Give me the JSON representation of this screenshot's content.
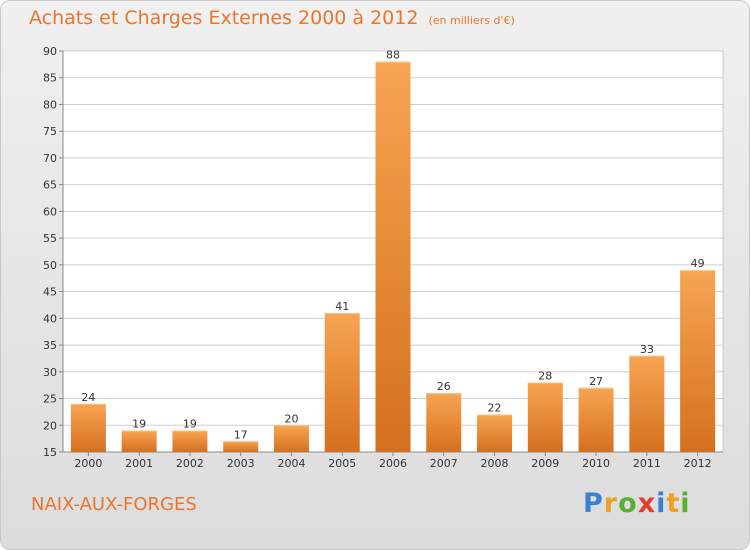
{
  "header": {
    "title": "Achats et Charges Externes 2000 à 2012",
    "subtitle": "(en milliers d'€)"
  },
  "footer": {
    "commune": "NAIX-AUX-FORGES",
    "logo_letters": [
      "P",
      "r",
      "o",
      "x",
      "i",
      "t",
      "i"
    ],
    "logo_colors": [
      "#3a7fd6",
      "#f0a020",
      "#58b030",
      "#e33c2c",
      "#3a7fd6",
      "#f0a020",
      "#58b030"
    ]
  },
  "colors": {
    "bar_light": "#f7a553",
    "bar_dark": "#d4701f",
    "title": "#e8762c",
    "grid": "#cfcfcf"
  },
  "chart_data": {
    "type": "bar",
    "categories": [
      "2000",
      "2001",
      "2002",
      "2003",
      "2004",
      "2005",
      "2006",
      "2007",
      "2008",
      "2009",
      "2010",
      "2011",
      "2012"
    ],
    "values": [
      24,
      19,
      19,
      17,
      20,
      41,
      88,
      26,
      22,
      28,
      27,
      33,
      49
    ],
    "yticks": [
      15,
      20,
      25,
      30,
      35,
      40,
      45,
      50,
      55,
      60,
      65,
      70,
      75,
      80,
      85,
      90
    ],
    "ylim": [
      15,
      90
    ],
    "grid": true,
    "title": "Achats et Charges Externes 2000 à 2012",
    "subtitle": "(en milliers d'€)"
  }
}
